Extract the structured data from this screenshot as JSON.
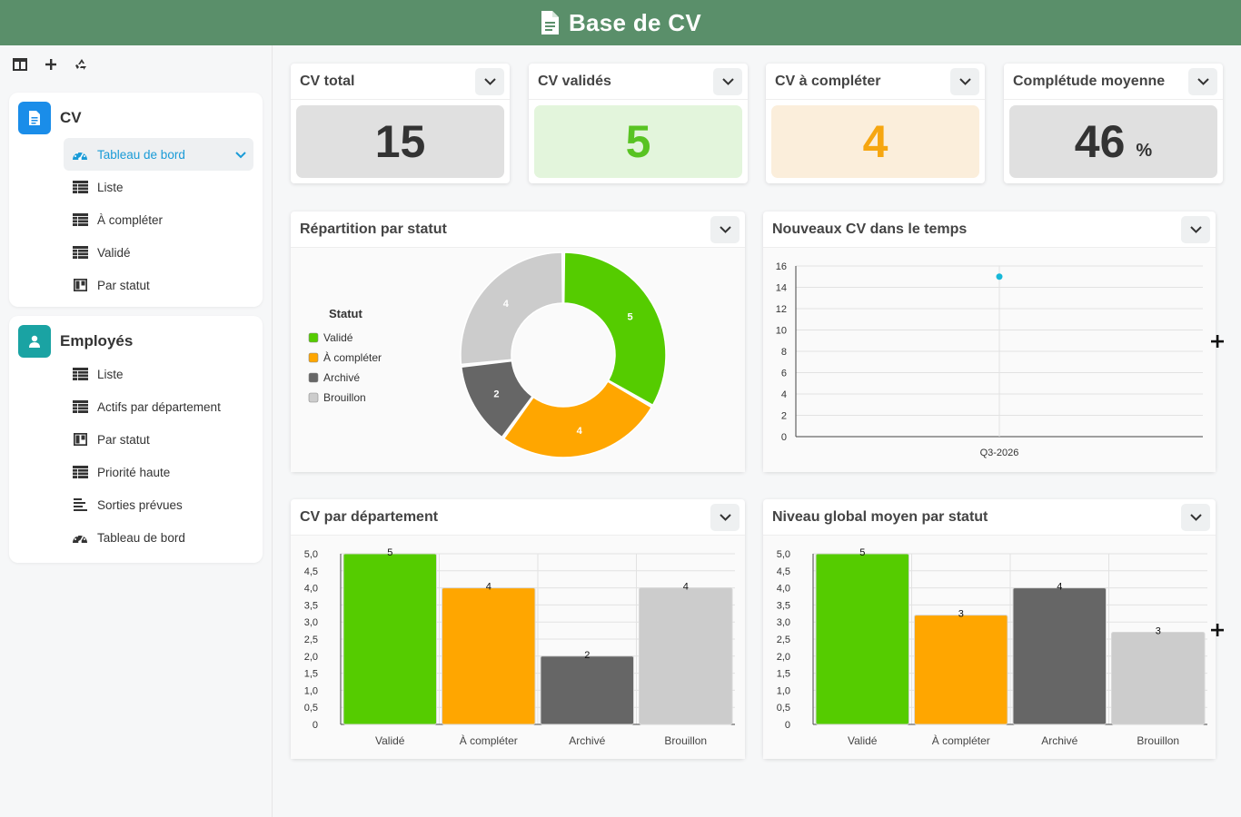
{
  "app": {
    "title": "Base de CV"
  },
  "sidebar": {
    "tools": [
      {
        "icon": "split-view-icon"
      },
      {
        "icon": "plus-icon"
      },
      {
        "icon": "recycle-icon"
      }
    ],
    "sections": [
      {
        "title": "CV",
        "icon": "document-icon",
        "badge_color": "#1a8de9",
        "items": [
          {
            "label": "Tableau de bord",
            "icon": "dashboard-icon",
            "active": true
          },
          {
            "label": "Liste",
            "icon": "table-icon"
          },
          {
            "label": "À compléter",
            "icon": "table-icon"
          },
          {
            "label": "Validé",
            "icon": "table-icon"
          },
          {
            "label": "Par statut",
            "icon": "kanban-icon"
          }
        ]
      },
      {
        "title": "Employés",
        "icon": "user-badge-icon",
        "badge_color": "#1aa3a3",
        "items": [
          {
            "label": "Liste",
            "icon": "table-icon"
          },
          {
            "label": "Actifs par département",
            "icon": "table-icon"
          },
          {
            "label": "Par statut",
            "icon": "kanban-icon"
          },
          {
            "label": "Priorité haute",
            "icon": "table-icon"
          },
          {
            "label": "Sorties prévues",
            "icon": "list-icon"
          },
          {
            "label": "Tableau de bord",
            "icon": "dashboard-icon"
          }
        ]
      }
    ]
  },
  "stats": [
    {
      "title": "CV total",
      "value": "15",
      "unit": "",
      "bg": "#e0e0e0",
      "color": "#333333"
    },
    {
      "title": "CV validés",
      "value": "5",
      "unit": "",
      "bg": "#e3f5dc",
      "color": "#58c322"
    },
    {
      "title": "CV à compléter",
      "value": "4",
      "unit": "",
      "bg": "#fbeedb",
      "color": "#f6a610"
    },
    {
      "title": "Complétude moyenne",
      "value": "46",
      "unit": "%",
      "bg": "#e0e0e0",
      "color": "#333333"
    }
  ],
  "panels": {
    "donut_title": "Répartition par statut",
    "line_title": "Nouveaux CV dans le temps",
    "bar1_title": "CV par département",
    "bar2_title": "Niveau global moyen par statut"
  },
  "colors": {
    "valide": "#55cc00",
    "a_completer": "#ffa600",
    "archive": "#666666",
    "brouillon": "#cccccc",
    "accent": "#1a9bd7"
  },
  "chart_data": [
    {
      "type": "pie",
      "variant": "donut",
      "legend_title": "Statut",
      "categories": [
        "Validé",
        "À compléter",
        "Archivé",
        "Brouillon"
      ],
      "values": [
        5,
        4,
        2,
        4
      ],
      "colors": [
        "#55cc00",
        "#ffa600",
        "#666666",
        "#cccccc"
      ]
    },
    {
      "type": "scatter",
      "x": [
        "Q3-2026"
      ],
      "values": [
        15
      ],
      "ylim": [
        0,
        16
      ],
      "yticks": [
        "0",
        "2",
        "4",
        "6",
        "8",
        "10",
        "12",
        "14",
        "16"
      ]
    },
    {
      "type": "bar",
      "categories": [
        "Validé",
        "À compléter",
        "Archivé",
        "Brouillon"
      ],
      "values": [
        5,
        4,
        2,
        4
      ],
      "colors": [
        "#55cc00",
        "#ffa600",
        "#666666",
        "#cccccc"
      ],
      "ylim": [
        0,
        5
      ],
      "yticks": [
        "0",
        "0,5",
        "1,0",
        "1,5",
        "2,0",
        "2,5",
        "3,0",
        "3,5",
        "4,0",
        "4,5",
        "5,0"
      ]
    },
    {
      "type": "bar",
      "categories": [
        "Validé",
        "À compléter",
        "Archivé",
        "Brouillon"
      ],
      "values": [
        5,
        3.2,
        4,
        2.7
      ],
      "labels": [
        "5",
        "3",
        "4",
        "3"
      ],
      "colors": [
        "#55cc00",
        "#ffa600",
        "#666666",
        "#cccccc"
      ],
      "ylim": [
        0,
        5
      ],
      "yticks": [
        "0",
        "0,5",
        "1,0",
        "1,5",
        "2,0",
        "2,5",
        "3,0",
        "3,5",
        "4,0",
        "4,5",
        "5,0"
      ]
    }
  ]
}
